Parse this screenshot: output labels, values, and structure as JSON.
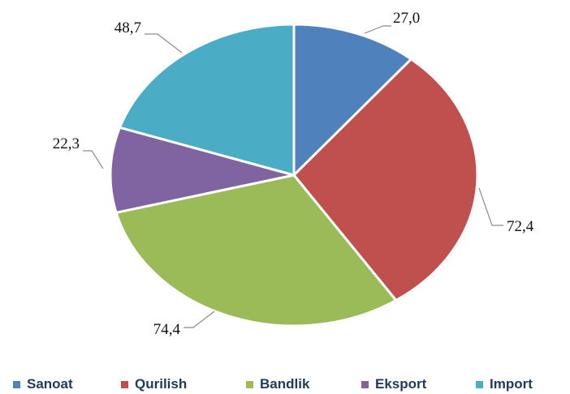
{
  "chart_data": {
    "type": "pie",
    "categories": [
      "Sanoat",
      "Qurilish",
      "Bandlik",
      "Eksport",
      "Import"
    ],
    "values": [
      27.0,
      72.4,
      74.4,
      22.3,
      48.7
    ],
    "data_labels": [
      "27,0",
      "72,4",
      "74,4",
      "22,3",
      "48,7"
    ],
    "colors": [
      "#4f81bd",
      "#c0504d",
      "#9bbb59",
      "#8064a2",
      "#4bacc6"
    ],
    "start_angle_deg": 0,
    "direction": "clockwise",
    "legend_position": "bottom",
    "title": "",
    "xlabel": "",
    "ylabel": ""
  }
}
